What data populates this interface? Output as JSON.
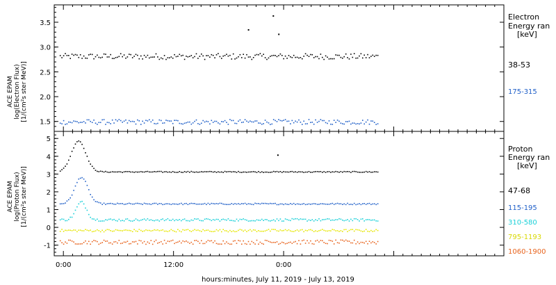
{
  "chart_data": [
    {
      "type": "scatter",
      "panel": "electron",
      "ylabel_lines": [
        "ACE EPAM",
        "log(Electron Flux)",
        "[1/(cm²s ster MeV)]"
      ],
      "ylim": [
        1.3,
        3.85
      ],
      "yticks": [
        1.5,
        2.0,
        2.5,
        3.0,
        3.5
      ],
      "ytick_labels": [
        "1.5",
        "2.0",
        "2.5",
        "3.0",
        "3.5"
      ],
      "legend_title": [
        "Electron",
        "Energy ran",
        "[keV]"
      ],
      "series": [
        {
          "name": "38-53",
          "color": "#000000",
          "x_start_h": -0.4,
          "x_end_h": 34.2,
          "level": 2.82,
          "noise": 0.06,
          "n": 190,
          "outliers": [
            [
              20.1,
              3.36
            ],
            [
              22.8,
              3.64
            ],
            [
              23.4,
              3.27
            ]
          ]
        },
        {
          "name": "175-315",
          "color": "#1f5fc8",
          "x_start_h": -0.4,
          "x_end_h": 34.2,
          "level": 1.5,
          "noise": 0.05,
          "n": 190,
          "outliers": []
        }
      ]
    },
    {
      "type": "scatter",
      "panel": "proton",
      "ylabel_lines": [
        "ACE EPAM",
        "log(Proton Flux)",
        "[1/(cm²s ster MeV)]"
      ],
      "ylim": [
        -1.6,
        5.4
      ],
      "yticks": [
        -1,
        0,
        1,
        2,
        3,
        4,
        5
      ],
      "ytick_labels": [
        "-1",
        "0",
        "1",
        "2",
        "3",
        "4",
        "5"
      ],
      "legend_title": [
        "Proton",
        "Energy ran",
        "[keV]"
      ],
      "series": [
        {
          "name": "47-68",
          "color": "#000000",
          "x_start_h": -0.4,
          "x_end_h": 34.2,
          "level": 3.15,
          "noise": 0.03,
          "n": 190,
          "bump": {
            "center_h": 1.6,
            "width_h": 1.1,
            "amp": 1.75
          },
          "outliers": [
            [
              23.3,
              4.1
            ]
          ]
        },
        {
          "name": "115-195",
          "color": "#1f5fc8",
          "x_start_h": -0.4,
          "x_end_h": 34.2,
          "level": 1.35,
          "noise": 0.04,
          "n": 190,
          "bump": {
            "center_h": 1.9,
            "width_h": 1.0,
            "amp": 1.5
          },
          "outliers": []
        },
        {
          "name": "310-580",
          "color": "#19d0d8",
          "x_start_h": -0.4,
          "x_end_h": 34.2,
          "level": 0.45,
          "noise": 0.07,
          "n": 190,
          "bump": {
            "center_h": 1.9,
            "width_h": 0.8,
            "amp": 1.0
          },
          "outliers": []
        },
        {
          "name": "795-1193",
          "color": "#e6e600",
          "x_start_h": -0.4,
          "x_end_h": 34.2,
          "level": -0.15,
          "noise": 0.07,
          "n": 190,
          "outliers": []
        },
        {
          "name": "1060-1900",
          "color": "#e8641e",
          "x_start_h": -0.4,
          "x_end_h": 34.2,
          "level": -0.8,
          "noise": 0.12,
          "n": 190,
          "outliers": []
        }
      ]
    }
  ],
  "x_axis": {
    "title": "hours:minutes, July 11, 2019 - July 13, 2019",
    "xlim_h": [
      -1,
      48
    ],
    "ticks": [
      {
        "h": 0,
        "label": "0:00"
      },
      {
        "h": 12,
        "label": "12:00"
      },
      {
        "h": 24,
        "label": "0:00"
      }
    ],
    "minor_step_h": 1
  }
}
